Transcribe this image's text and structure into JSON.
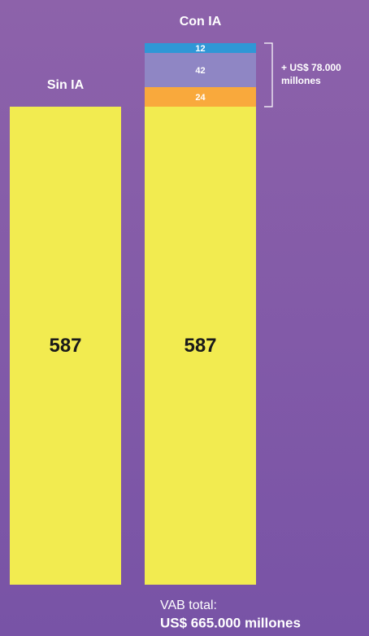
{
  "chart_data": {
    "type": "stacked-bar",
    "categories": [
      "Sin IA",
      "Con IA"
    ],
    "series": [
      {
        "color": "#f2eb50",
        "values": [
          587,
          587
        ]
      },
      {
        "color": "#f9a93c",
        "values": [
          null,
          24
        ]
      },
      {
        "color": "#8f86c4",
        "values": [
          null,
          42
        ]
      },
      {
        "color": "#2f97d6",
        "values": [
          null,
          12
        ]
      }
    ],
    "annotation": [
      "+ US$ 78.000",
      "millones"
    ],
    "total_label": "VAB total:",
    "total_value": "US$ 665.000 millones"
  }
}
